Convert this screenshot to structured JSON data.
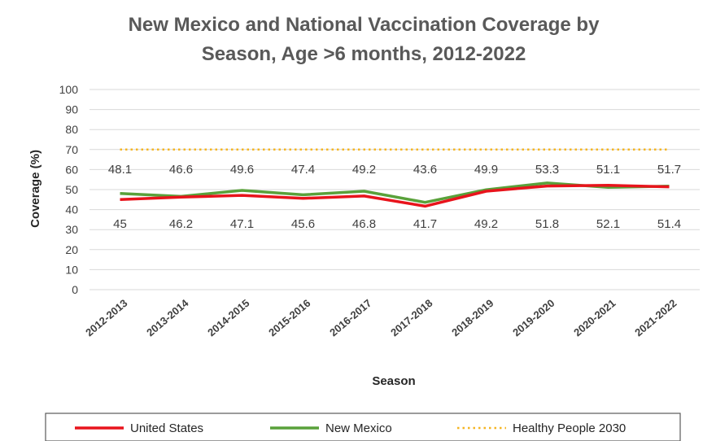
{
  "chart_data": {
    "type": "line",
    "title": [
      "New Mexico and National Vaccination Coverage by",
      "Season, Age >6 months, 2012-2022"
    ],
    "xlabel": "Season",
    "ylabel": "Coverage (%)",
    "ylim": [
      0,
      100
    ],
    "yticks": [
      0,
      10,
      20,
      30,
      40,
      50,
      60,
      70,
      80,
      90,
      100
    ],
    "grid": true,
    "legend_position": "bottom",
    "categories": [
      "2012-2013",
      "2013-2014",
      "2014-2015",
      "2015-2016",
      "2016-2017",
      "2017-2018",
      "2018-2019",
      "2019-2020",
      "2020-2021",
      "2021-2022"
    ],
    "series": [
      {
        "name": "United States",
        "color": "#e8141c",
        "style": "solid",
        "values": [
          45,
          46.2,
          47.1,
          45.6,
          46.8,
          41.7,
          49.2,
          51.8,
          52.1,
          51.4
        ],
        "labels": [
          "45",
          "46.2",
          "47.1",
          "45.6",
          "46.8",
          "41.7",
          "49.2",
          "51.8",
          "52.1",
          "51.4"
        ],
        "label_position": "below"
      },
      {
        "name": "New Mexico",
        "color": "#59a13a",
        "style": "solid",
        "values": [
          48.1,
          46.6,
          49.6,
          47.4,
          49.2,
          43.6,
          49.9,
          53.3,
          51.1,
          51.7
        ],
        "labels": [
          "48.1",
          "46.6",
          "49.6",
          "47.4",
          "49.2",
          "43.6",
          "49.9",
          "53.3",
          "51.1",
          "51.7"
        ],
        "label_position": "above"
      },
      {
        "name": "Healthy People 2030",
        "color": "#f5b522",
        "style": "dotted",
        "values": [
          70,
          70,
          70,
          70,
          70,
          70,
          70,
          70,
          70,
          70
        ]
      }
    ]
  }
}
